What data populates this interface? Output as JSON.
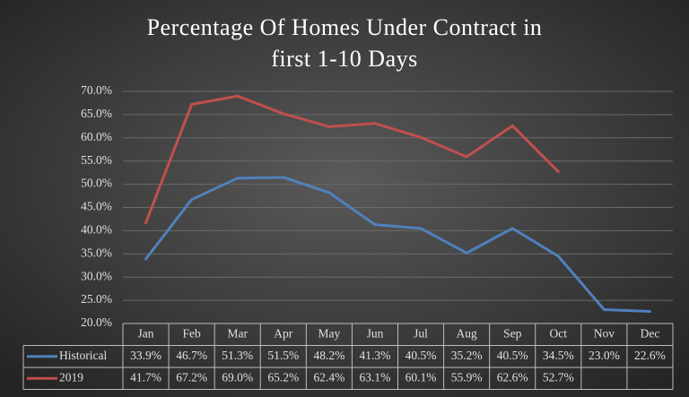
{
  "chart_data": {
    "type": "line",
    "title": [
      "Percentage Of Homes Under Contract in",
      "first 1-10 Days"
    ],
    "categories": [
      "Jan",
      "Feb",
      "Mar",
      "Apr",
      "May",
      "Jun",
      "Jul",
      "Aug",
      "Sep",
      "Oct",
      "Nov",
      "Dec"
    ],
    "series": [
      {
        "name": "Historical",
        "color": "#4f81bd",
        "values": [
          33.9,
          46.7,
          51.3,
          51.5,
          48.2,
          41.3,
          40.5,
          35.2,
          40.5,
          34.5,
          23.0,
          22.6
        ],
        "value_labels": [
          "33.9%",
          "46.7%",
          "51.3%",
          "51.5%",
          "48.2%",
          "41.3%",
          "40.5%",
          "35.2%",
          "40.5%",
          "34.5%",
          "23.0%",
          "22.6%"
        ]
      },
      {
        "name": "2019",
        "color": "#c0504d",
        "values": [
          41.7,
          67.2,
          69.0,
          65.2,
          62.4,
          63.1,
          60.1,
          55.9,
          62.6,
          52.7,
          null,
          null
        ],
        "value_labels": [
          "41.7%",
          "67.2%",
          "69.0%",
          "65.2%",
          "62.4%",
          "63.1%",
          "60.1%",
          "55.9%",
          "62.6%",
          "52.7%",
          null,
          null
        ]
      }
    ],
    "ylim": [
      20,
      70
    ],
    "yticks": [
      {
        "value": 20,
        "label": "20.0%"
      },
      {
        "value": 25,
        "label": "25.0%"
      },
      {
        "value": 30,
        "label": "30.0%"
      },
      {
        "value": 35,
        "label": "35.0%"
      },
      {
        "value": 40,
        "label": "40.0%"
      },
      {
        "value": 45,
        "label": "45.0%"
      },
      {
        "value": 50,
        "label": "50.0%"
      },
      {
        "value": 55,
        "label": "55.0%"
      },
      {
        "value": 60,
        "label": "60.0%"
      },
      {
        "value": 65,
        "label": "65.0%"
      },
      {
        "value": 70,
        "label": "70.0%"
      }
    ],
    "grid": true
  }
}
